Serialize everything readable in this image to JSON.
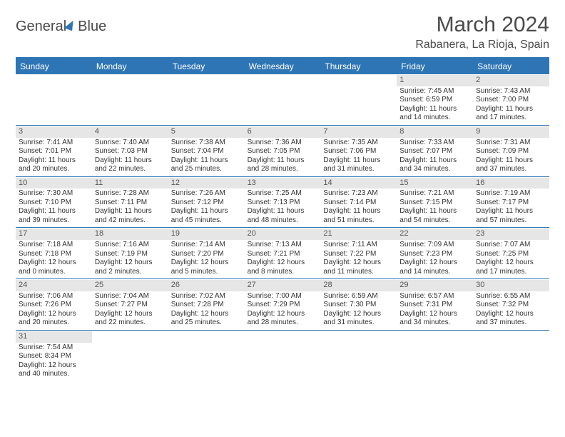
{
  "logo": {
    "text1": "General",
    "text2": "Blue"
  },
  "title": "March 2024",
  "location": "Rabanera, La Rioja, Spain",
  "colors": {
    "accent": "#2e75b6",
    "daynum_bg": "#e6e6e6",
    "text": "#333333",
    "title": "#4a4a4a"
  },
  "day_names": [
    "Sunday",
    "Monday",
    "Tuesday",
    "Wednesday",
    "Thursday",
    "Friday",
    "Saturday"
  ],
  "weeks": [
    [
      {
        "n": "",
        "lines": []
      },
      {
        "n": "",
        "lines": []
      },
      {
        "n": "",
        "lines": []
      },
      {
        "n": "",
        "lines": []
      },
      {
        "n": "",
        "lines": []
      },
      {
        "n": "1",
        "lines": [
          "Sunrise: 7:45 AM",
          "Sunset: 6:59 PM",
          "Daylight: 11 hours",
          "and 14 minutes."
        ]
      },
      {
        "n": "2",
        "lines": [
          "Sunrise: 7:43 AM",
          "Sunset: 7:00 PM",
          "Daylight: 11 hours",
          "and 17 minutes."
        ]
      }
    ],
    [
      {
        "n": "3",
        "lines": [
          "Sunrise: 7:41 AM",
          "Sunset: 7:01 PM",
          "Daylight: 11 hours",
          "and 20 minutes."
        ]
      },
      {
        "n": "4",
        "lines": [
          "Sunrise: 7:40 AM",
          "Sunset: 7:03 PM",
          "Daylight: 11 hours",
          "and 22 minutes."
        ]
      },
      {
        "n": "5",
        "lines": [
          "Sunrise: 7:38 AM",
          "Sunset: 7:04 PM",
          "Daylight: 11 hours",
          "and 25 minutes."
        ]
      },
      {
        "n": "6",
        "lines": [
          "Sunrise: 7:36 AM",
          "Sunset: 7:05 PM",
          "Daylight: 11 hours",
          "and 28 minutes."
        ]
      },
      {
        "n": "7",
        "lines": [
          "Sunrise: 7:35 AM",
          "Sunset: 7:06 PM",
          "Daylight: 11 hours",
          "and 31 minutes."
        ]
      },
      {
        "n": "8",
        "lines": [
          "Sunrise: 7:33 AM",
          "Sunset: 7:07 PM",
          "Daylight: 11 hours",
          "and 34 minutes."
        ]
      },
      {
        "n": "9",
        "lines": [
          "Sunrise: 7:31 AM",
          "Sunset: 7:09 PM",
          "Daylight: 11 hours",
          "and 37 minutes."
        ]
      }
    ],
    [
      {
        "n": "10",
        "lines": [
          "Sunrise: 7:30 AM",
          "Sunset: 7:10 PM",
          "Daylight: 11 hours",
          "and 39 minutes."
        ]
      },
      {
        "n": "11",
        "lines": [
          "Sunrise: 7:28 AM",
          "Sunset: 7:11 PM",
          "Daylight: 11 hours",
          "and 42 minutes."
        ]
      },
      {
        "n": "12",
        "lines": [
          "Sunrise: 7:26 AM",
          "Sunset: 7:12 PM",
          "Daylight: 11 hours",
          "and 45 minutes."
        ]
      },
      {
        "n": "13",
        "lines": [
          "Sunrise: 7:25 AM",
          "Sunset: 7:13 PM",
          "Daylight: 11 hours",
          "and 48 minutes."
        ]
      },
      {
        "n": "14",
        "lines": [
          "Sunrise: 7:23 AM",
          "Sunset: 7:14 PM",
          "Daylight: 11 hours",
          "and 51 minutes."
        ]
      },
      {
        "n": "15",
        "lines": [
          "Sunrise: 7:21 AM",
          "Sunset: 7:15 PM",
          "Daylight: 11 hours",
          "and 54 minutes."
        ]
      },
      {
        "n": "16",
        "lines": [
          "Sunrise: 7:19 AM",
          "Sunset: 7:17 PM",
          "Daylight: 11 hours",
          "and 57 minutes."
        ]
      }
    ],
    [
      {
        "n": "17",
        "lines": [
          "Sunrise: 7:18 AM",
          "Sunset: 7:18 PM",
          "Daylight: 12 hours",
          "and 0 minutes."
        ]
      },
      {
        "n": "18",
        "lines": [
          "Sunrise: 7:16 AM",
          "Sunset: 7:19 PM",
          "Daylight: 12 hours",
          "and 2 minutes."
        ]
      },
      {
        "n": "19",
        "lines": [
          "Sunrise: 7:14 AM",
          "Sunset: 7:20 PM",
          "Daylight: 12 hours",
          "and 5 minutes."
        ]
      },
      {
        "n": "20",
        "lines": [
          "Sunrise: 7:13 AM",
          "Sunset: 7:21 PM",
          "Daylight: 12 hours",
          "and 8 minutes."
        ]
      },
      {
        "n": "21",
        "lines": [
          "Sunrise: 7:11 AM",
          "Sunset: 7:22 PM",
          "Daylight: 12 hours",
          "and 11 minutes."
        ]
      },
      {
        "n": "22",
        "lines": [
          "Sunrise: 7:09 AM",
          "Sunset: 7:23 PM",
          "Daylight: 12 hours",
          "and 14 minutes."
        ]
      },
      {
        "n": "23",
        "lines": [
          "Sunrise: 7:07 AM",
          "Sunset: 7:25 PM",
          "Daylight: 12 hours",
          "and 17 minutes."
        ]
      }
    ],
    [
      {
        "n": "24",
        "lines": [
          "Sunrise: 7:06 AM",
          "Sunset: 7:26 PM",
          "Daylight: 12 hours",
          "and 20 minutes."
        ]
      },
      {
        "n": "25",
        "lines": [
          "Sunrise: 7:04 AM",
          "Sunset: 7:27 PM",
          "Daylight: 12 hours",
          "and 22 minutes."
        ]
      },
      {
        "n": "26",
        "lines": [
          "Sunrise: 7:02 AM",
          "Sunset: 7:28 PM",
          "Daylight: 12 hours",
          "and 25 minutes."
        ]
      },
      {
        "n": "27",
        "lines": [
          "Sunrise: 7:00 AM",
          "Sunset: 7:29 PM",
          "Daylight: 12 hours",
          "and 28 minutes."
        ]
      },
      {
        "n": "28",
        "lines": [
          "Sunrise: 6:59 AM",
          "Sunset: 7:30 PM",
          "Daylight: 12 hours",
          "and 31 minutes."
        ]
      },
      {
        "n": "29",
        "lines": [
          "Sunrise: 6:57 AM",
          "Sunset: 7:31 PM",
          "Daylight: 12 hours",
          "and 34 minutes."
        ]
      },
      {
        "n": "30",
        "lines": [
          "Sunrise: 6:55 AM",
          "Sunset: 7:32 PM",
          "Daylight: 12 hours",
          "and 37 minutes."
        ]
      }
    ],
    [
      {
        "n": "31",
        "lines": [
          "Sunrise: 7:54 AM",
          "Sunset: 8:34 PM",
          "Daylight: 12 hours",
          "and 40 minutes."
        ]
      },
      {
        "n": "",
        "lines": []
      },
      {
        "n": "",
        "lines": []
      },
      {
        "n": "",
        "lines": []
      },
      {
        "n": "",
        "lines": []
      },
      {
        "n": "",
        "lines": []
      },
      {
        "n": "",
        "lines": []
      }
    ]
  ]
}
